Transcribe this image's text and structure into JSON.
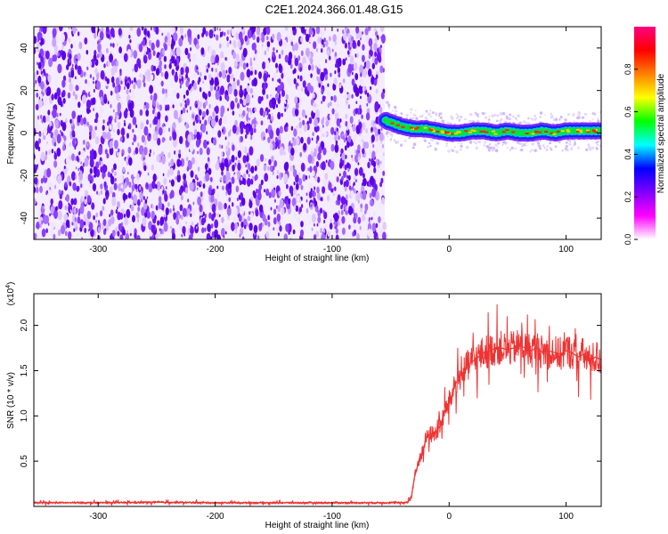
{
  "figure": {
    "title": "C2E1.2024.366.01.48.G15"
  },
  "chart_data": [
    {
      "type": "heatmap",
      "name": "spectrogram",
      "xlabel": "Height of straight line (km)",
      "ylabel": "Frequency (Hz)",
      "xlim": [
        -355,
        130
      ],
      "ylim": [
        -50,
        50
      ],
      "xticks": [
        -300,
        -200,
        -100,
        0,
        100
      ],
      "yticks": [
        -40,
        -20,
        0,
        20,
        40
      ],
      "noise_region": {
        "x_range": [
          -355,
          -55
        ],
        "y_range": [
          -50,
          50
        ]
      },
      "signal_track": {
        "x": [
          -55,
          -50,
          -45,
          -40,
          -30,
          -20,
          -10,
          0,
          10,
          20,
          30,
          40,
          50,
          60,
          70,
          80,
          90,
          100,
          110,
          120,
          130
        ],
        "y": [
          6,
          5,
          4,
          3,
          2,
          2,
          1,
          0,
          0,
          1,
          1,
          0,
          1,
          0,
          0,
          1,
          0,
          1,
          1,
          1,
          1
        ]
      },
      "colorbar": {
        "label": "Normalized spectral amplitude",
        "ticks": [
          "0.0",
          "0.2",
          "0.4",
          "0.6",
          "0.8"
        ],
        "range": [
          0,
          1
        ],
        "colors": [
          "#ffffff",
          "#ff00ff",
          "#8000ff",
          "#0000ff",
          "#00ffff",
          "#00ff00",
          "#ffff00",
          "#ff8000",
          "#ff0000",
          "#ff0080"
        ]
      }
    },
    {
      "type": "line",
      "name": "snr",
      "xlabel": "Height of straight line (km)",
      "ylabel": "SNR (10 * v/v)",
      "scale_label_base": "(x10",
      "scale_label_exp": "4",
      "scale_label_close": ")",
      "xlim": [
        -355,
        130
      ],
      "ylim": [
        0,
        2.35
      ],
      "xticks": [
        -300,
        -200,
        -100,
        0,
        100
      ],
      "yticks": [
        "0.5",
        "1.0",
        "1.5",
        "2.0"
      ],
      "line_color": "#ee3333",
      "series": [
        {
          "x": [
            -355,
            -300,
            -250,
            -200,
            -150,
            -100,
            -60,
            -40,
            -35,
            -32,
            -30,
            -27,
            -25,
            -22,
            -20,
            -18,
            -15,
            -12,
            -10,
            -7,
            -5,
            -2,
            0,
            3,
            5,
            8,
            10,
            13,
            15,
            18,
            20,
            25,
            30,
            35,
            40,
            45,
            50,
            55,
            60,
            65,
            70,
            75,
            80,
            85,
            90,
            95,
            100,
            105,
            110,
            115,
            120,
            125,
            130
          ],
          "y": [
            0.04,
            0.04,
            0.045,
            0.04,
            0.04,
            0.04,
            0.04,
            0.04,
            0.05,
            0.12,
            0.3,
            0.45,
            0.55,
            0.62,
            0.75,
            0.78,
            0.8,
            0.8,
            0.85,
            0.9,
            1.0,
            1.1,
            1.15,
            1.25,
            1.35,
            1.4,
            1.45,
            1.5,
            1.55,
            1.58,
            1.6,
            1.65,
            1.7,
            1.72,
            1.75,
            1.75,
            1.73,
            1.75,
            1.78,
            1.75,
            1.72,
            1.75,
            1.7,
            1.72,
            1.7,
            1.68,
            1.72,
            1.7,
            1.65,
            1.68,
            1.6,
            1.65,
            1.62
          ]
        }
      ]
    }
  ]
}
